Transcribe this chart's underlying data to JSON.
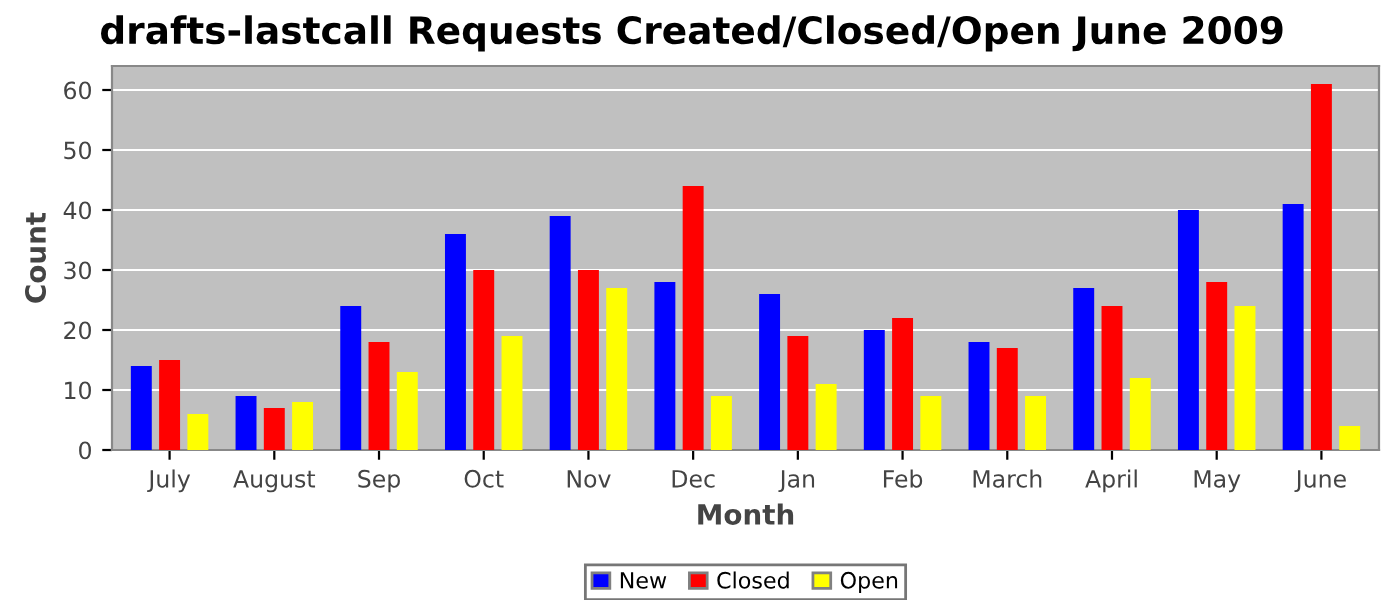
{
  "chart_data": {
    "type": "bar",
    "title": "drafts-lastcall Requests Created/Closed/Open June 2009",
    "xlabel": "Month",
    "ylabel": "Count",
    "categories": [
      "July",
      "August",
      "Sep",
      "Oct",
      "Nov",
      "Dec",
      "Jan",
      "Feb",
      "March",
      "April",
      "May",
      "June"
    ],
    "series": [
      {
        "name": "New",
        "color": "#0000ff",
        "values": [
          14,
          9,
          24,
          36,
          39,
          28,
          26,
          20,
          18,
          27,
          40,
          41
        ]
      },
      {
        "name": "Closed",
        "color": "#ff0000",
        "values": [
          15,
          7,
          18,
          30,
          30,
          44,
          19,
          22,
          17,
          24,
          28,
          61
        ]
      },
      {
        "name": "Open",
        "color": "#ffff00",
        "values": [
          6,
          8,
          13,
          19,
          27,
          9,
          11,
          9,
          9,
          12,
          24,
          4
        ]
      }
    ],
    "ylim": [
      0,
      64
    ],
    "yticks": [
      0,
      10,
      20,
      30,
      40,
      50,
      60
    ],
    "grid": "y",
    "legend": "bottom"
  }
}
